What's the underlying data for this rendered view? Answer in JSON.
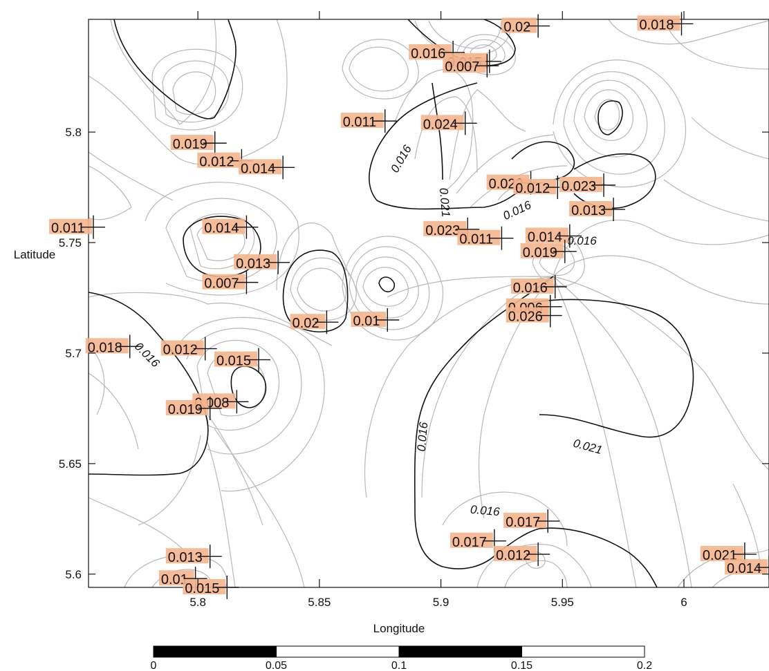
{
  "chart_data": {
    "type": "contour",
    "xlabel": "Longitude",
    "ylabel": "Latitude",
    "xlim": [
      5.755,
      6.035
    ],
    "ylim": [
      5.594,
      5.851
    ],
    "x_ticks": [
      {
        "value": 5.8,
        "label": "5.8"
      },
      {
        "value": 5.85,
        "label": "5.85"
      },
      {
        "value": 5.9,
        "label": "5.9"
      },
      {
        "value": 5.95,
        "label": "5.95"
      },
      {
        "value": 6.0,
        "label": "6"
      }
    ],
    "y_ticks": [
      {
        "value": 5.6,
        "label": "5.6"
      },
      {
        "value": 5.65,
        "label": "5.65"
      },
      {
        "value": 5.7,
        "label": "5.7"
      },
      {
        "value": 5.75,
        "label": "5.75"
      },
      {
        "value": 5.8,
        "label": "5.8"
      }
    ],
    "contour_levels": [
      {
        "value": 0.016,
        "label": "0.016",
        "major": true
      },
      {
        "value": 0.021,
        "label": "0.021",
        "major": true
      }
    ],
    "contour_labels": [
      {
        "text": "0.016",
        "x": 5.918,
        "y": 5.627,
        "angle": 5
      },
      {
        "text": "0.016",
        "x": 5.894,
        "y": 5.662,
        "angle": -85
      },
      {
        "text": "0.021",
        "x": 5.96,
        "y": 5.656,
        "angle": 15
      },
      {
        "text": "0.016",
        "x": 5.778,
        "y": 5.698,
        "angle": 45
      },
      {
        "text": "0.016",
        "x": 5.885,
        "y": 5.787,
        "angle": -60
      },
      {
        "text": "0.021",
        "x": 5.9,
        "y": 5.768,
        "angle": 85
      },
      {
        "text": "0.016",
        "x": 5.932,
        "y": 5.763,
        "angle": -25
      },
      {
        "text": "0.016",
        "x": 5.958,
        "y": 5.749,
        "angle": 0
      }
    ],
    "points": [
      {
        "x": 5.94,
        "y": 5.848,
        "value": "0.02"
      },
      {
        "x": 5.999,
        "y": 5.849,
        "value": "0.018"
      },
      {
        "x": 5.905,
        "y": 5.836,
        "value": "0.016"
      },
      {
        "x": 5.92,
        "y": 5.832,
        "value": "0.015"
      },
      {
        "x": 5.919,
        "y": 5.83,
        "value": "0.007"
      },
      {
        "x": 5.877,
        "y": 5.805,
        "value": "0.011"
      },
      {
        "x": 5.91,
        "y": 5.804,
        "value": "0.024"
      },
      {
        "x": 5.807,
        "y": 5.795,
        "value": "0.019"
      },
      {
        "x": 5.818,
        "y": 5.787,
        "value": "0.012"
      },
      {
        "x": 5.835,
        "y": 5.784,
        "value": "0.014"
      },
      {
        "x": 5.937,
        "y": 5.777,
        "value": "0.022"
      },
      {
        "x": 5.948,
        "y": 5.775,
        "value": "0.012"
      },
      {
        "x": 5.967,
        "y": 5.776,
        "value": "0.023"
      },
      {
        "x": 5.971,
        "y": 5.765,
        "value": "0.013"
      },
      {
        "x": 5.757,
        "y": 5.757,
        "value": "0.011"
      },
      {
        "x": 5.82,
        "y": 5.757,
        "value": "0.014"
      },
      {
        "x": 5.911,
        "y": 5.756,
        "value": "0.023"
      },
      {
        "x": 5.925,
        "y": 5.752,
        "value": "0.011"
      },
      {
        "x": 5.953,
        "y": 5.753,
        "value": "0.014"
      },
      {
        "x": 5.951,
        "y": 5.746,
        "value": "0.019"
      },
      {
        "x": 5.833,
        "y": 5.741,
        "value": "0.013"
      },
      {
        "x": 5.82,
        "y": 5.732,
        "value": "0.007"
      },
      {
        "x": 5.947,
        "y": 5.73,
        "value": "0.016"
      },
      {
        "x": 5.945,
        "y": 5.721,
        "value": "0.006"
      },
      {
        "x": 5.945,
        "y": 5.717,
        "value": "0.026"
      },
      {
        "x": 5.853,
        "y": 5.714,
        "value": "0.02"
      },
      {
        "x": 5.878,
        "y": 5.715,
        "value": "0.01"
      },
      {
        "x": 5.772,
        "y": 5.703,
        "value": "0.018"
      },
      {
        "x": 5.803,
        "y": 5.702,
        "value": "0.012"
      },
      {
        "x": 5.825,
        "y": 5.697,
        "value": "0.015"
      },
      {
        "x": 5.816,
        "y": 5.678,
        "value": "0.008"
      },
      {
        "x": 5.805,
        "y": 5.675,
        "value": "0.019"
      },
      {
        "x": 5.944,
        "y": 5.624,
        "value": "0.017"
      },
      {
        "x": 5.922,
        "y": 5.615,
        "value": "0.017"
      },
      {
        "x": 5.94,
        "y": 5.609,
        "value": "0.012"
      },
      {
        "x": 6.025,
        "y": 5.609,
        "value": "0.021"
      },
      {
        "x": 6.035,
        "y": 5.603,
        "value": "0.014"
      },
      {
        "x": 5.805,
        "y": 5.608,
        "value": "0.013"
      },
      {
        "x": 5.799,
        "y": 5.598,
        "value": "0.01"
      },
      {
        "x": 5.812,
        "y": 5.594,
        "value": "0.015"
      }
    ],
    "scale_bar": {
      "labels": [
        "0",
        "0.05",
        "0.1",
        "0.15",
        "0.2"
      ],
      "fills": [
        "black",
        "white",
        "black",
        "white"
      ]
    },
    "grid": false
  }
}
